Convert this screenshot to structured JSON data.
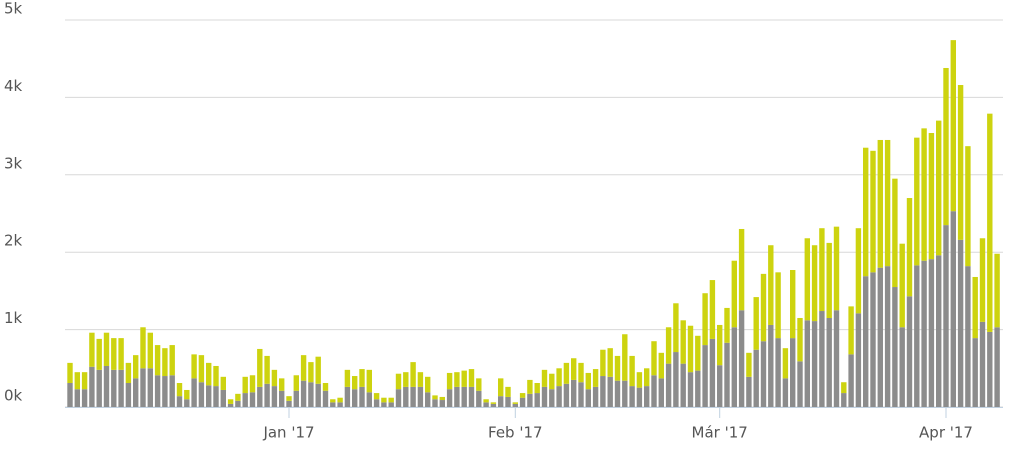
{
  "chart_data": {
    "type": "stacked-bar",
    "categories": [
      null,
      null,
      null,
      null,
      null,
      null,
      null,
      null,
      null,
      null,
      null,
      null,
      null,
      null,
      null,
      null,
      null,
      null,
      null,
      null,
      null,
      null,
      null,
      null,
      null,
      null,
      null,
      null,
      null,
      null,
      "Jan '17",
      null,
      null,
      null,
      null,
      null,
      null,
      null,
      null,
      null,
      null,
      null,
      null,
      null,
      null,
      null,
      null,
      null,
      null,
      null,
      null,
      null,
      null,
      null,
      null,
      null,
      null,
      null,
      null,
      null,
      null,
      "Feb '17",
      null,
      null,
      null,
      null,
      null,
      null,
      null,
      null,
      null,
      null,
      null,
      null,
      null,
      null,
      null,
      null,
      null,
      null,
      null,
      null,
      null,
      null,
      null,
      null,
      null,
      null,
      null,
      "Már '17",
      null,
      null,
      null,
      null,
      null,
      null,
      null,
      null,
      null,
      null,
      null,
      null,
      null,
      null,
      null,
      null,
      null,
      null,
      null,
      null,
      null,
      null,
      null,
      null,
      null,
      null,
      null,
      null,
      null,
      null,
      "Apr '17",
      null,
      null,
      null,
      null,
      null,
      null,
      null
    ],
    "series": [
      {
        "color": "#8c8c8c",
        "values": [
          310,
          230,
          230,
          520,
          480,
          530,
          480,
          480,
          310,
          370,
          500,
          500,
          410,
          400,
          410,
          140,
          100,
          370,
          320,
          280,
          270,
          220,
          40,
          80,
          180,
          190,
          260,
          300,
          270,
          210,
          80,
          210,
          340,
          320,
          300,
          210,
          60,
          60,
          260,
          230,
          260,
          190,
          100,
          60,
          60,
          230,
          260,
          260,
          260,
          190,
          100,
          90,
          230,
          260,
          260,
          260,
          210,
          60,
          40,
          140,
          130,
          40,
          120,
          170,
          180,
          260,
          230,
          270,
          300,
          350,
          320,
          230,
          260,
          400,
          390,
          340,
          340,
          270,
          250,
          270,
          410,
          370,
          560,
          710,
          560,
          450,
          470,
          800,
          880,
          540,
          830,
          1030,
          1250,
          390,
          740,
          850,
          1060,
          890,
          370,
          890,
          590,
          1120,
          1110,
          1240,
          1150,
          1250,
          180,
          680,
          1210,
          1690,
          1740,
          1800,
          1820,
          1550,
          1030,
          1430,
          1830,
          1890,
          1910,
          1960,
          2350,
          2530,
          2160,
          1820,
          890,
          1100,
          970,
          1030
        ]
      },
      {
        "color": "#cdd30f",
        "values": [
          260,
          220,
          220,
          440,
          400,
          430,
          410,
          410,
          260,
          300,
          530,
          460,
          390,
          360,
          390,
          170,
          120,
          310,
          350,
          290,
          260,
          170,
          60,
          90,
          210,
          220,
          490,
          360,
          210,
          160,
          60,
          200,
          330,
          260,
          350,
          100,
          40,
          60,
          220,
          170,
          230,
          290,
          80,
          60,
          60,
          200,
          190,
          320,
          190,
          200,
          50,
          40,
          210,
          190,
          210,
          230,
          160,
          40,
          20,
          230,
          130,
          20,
          60,
          180,
          130,
          220,
          200,
          230,
          270,
          280,
          250,
          210,
          230,
          340,
          370,
          320,
          600,
          390,
          200,
          230,
          440,
          330,
          470,
          630,
          560,
          600,
          450,
          670,
          760,
          520,
          450,
          860,
          1050,
          310,
          680,
          870,
          1030,
          850,
          390,
          880,
          560,
          1060,
          980,
          1070,
          970,
          1080,
          140,
          620,
          1100,
          1660,
          1570,
          1650,
          1630,
          1400,
          1080,
          1270,
          1650,
          1710,
          1630,
          1740,
          2030,
          2210,
          2000,
          1550,
          790,
          1080,
          2820,
          950
        ]
      }
    ],
    "ylim": [
      0,
      5000
    ],
    "yticks": [
      {
        "value": 0,
        "label": "0k"
      },
      {
        "value": 1000,
        "label": "1k"
      },
      {
        "value": 2000,
        "label": "2k"
      },
      {
        "value": 3000,
        "label": "3k"
      },
      {
        "value": 4000,
        "label": "4k"
      },
      {
        "value": 5000,
        "label": "5k"
      }
    ],
    "grid": true
  }
}
